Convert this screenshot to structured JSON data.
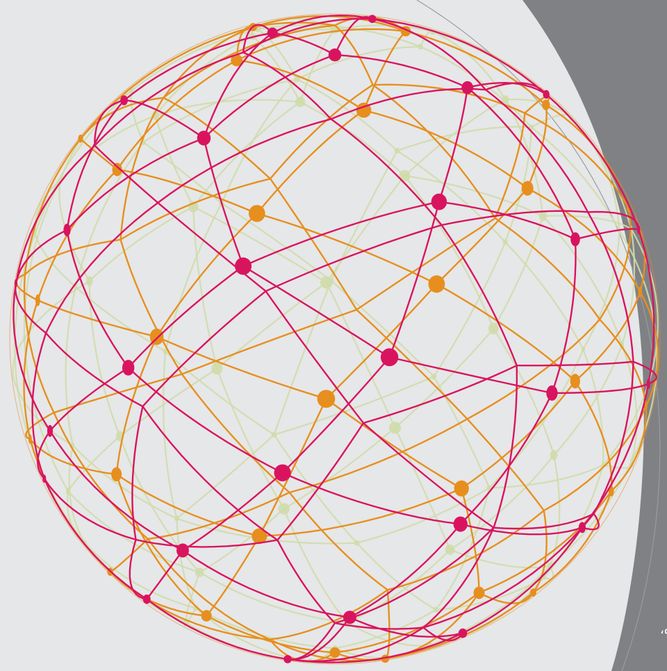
{
  "caption": "ده،"
}
